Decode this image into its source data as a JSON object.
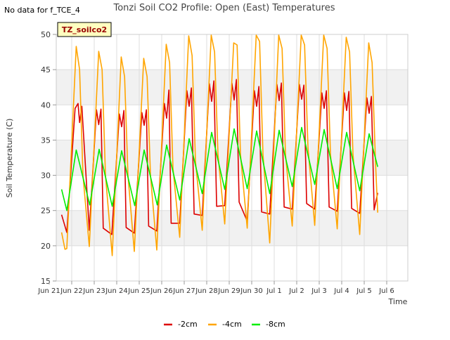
{
  "note": "No data for f_TCE_4",
  "chart_data": {
    "type": "line",
    "title": "Tonzi Soil CO2 Profile: Open (East) Temperatures",
    "xlabel": "Time",
    "ylabel": "Soil Temperature (C)",
    "badge": "TZ_soilco2",
    "ylim": [
      15,
      50
    ],
    "yticks": [
      15,
      20,
      25,
      30,
      35,
      40,
      45,
      50
    ],
    "xlim": [
      0,
      16
    ],
    "xticks": [
      {
        "x": 0,
        "label": "Jun 21"
      },
      {
        "x": 1,
        "label": "Jun 22"
      },
      {
        "x": 2,
        "label": "Jun 23"
      },
      {
        "x": 3,
        "label": "Jun 24"
      },
      {
        "x": 4,
        "label": "Jun 25"
      },
      {
        "x": 5,
        "label": "Jun 26"
      },
      {
        "x": 6,
        "label": "Jun 27"
      },
      {
        "x": 7,
        "label": "Jun 28"
      },
      {
        "x": 8,
        "label": "Jun 29"
      },
      {
        "x": 9,
        "label": "Jun 30"
      },
      {
        "x": 10,
        "label": "Jul 1"
      },
      {
        "x": 11,
        "label": "Jul 2"
      },
      {
        "x": 12,
        "label": "Jul 3"
      },
      {
        "x": 13,
        "label": "Jul 4"
      },
      {
        "x": 14,
        "label": "Jul 5"
      },
      {
        "x": 15,
        "label": "Jul 6"
      }
    ],
    "grid": true,
    "legend_position": "bottom",
    "series": [
      {
        "name": "-2cm",
        "color": "#dd0000",
        "x": [
          0.55,
          0.78,
          1.15,
          1.28,
          1.35,
          1.45,
          1.78,
          2.1,
          2.2,
          2.3,
          2.4,
          2.78,
          3.12,
          3.22,
          3.32,
          3.42,
          3.78,
          4.12,
          4.22,
          4.32,
          4.42,
          4.78,
          5.12,
          5.22,
          5.32,
          5.42,
          5.8,
          6.12,
          6.22,
          6.32,
          6.44,
          6.8,
          7.12,
          7.22,
          7.32,
          7.44,
          7.8,
          8.12,
          8.22,
          8.32,
          8.44,
          8.8,
          9.12,
          9.22,
          9.32,
          9.44,
          9.8,
          10.12,
          10.22,
          10.32,
          10.44,
          10.8,
          11.12,
          11.22,
          11.32,
          11.44,
          11.8,
          12.12,
          12.22,
          12.32,
          12.44,
          12.8,
          13.12,
          13.22,
          13.32,
          13.44,
          13.8,
          14.12,
          14.22,
          14.32,
          14.44,
          14.6
        ],
        "y": [
          24.4,
          21.9,
          39.5,
          40.2,
          37.5,
          39.8,
          22.2,
          39.3,
          37.2,
          39.4,
          22.5,
          21.6,
          38.7,
          36.9,
          39.2,
          22.6,
          21.8,
          38.9,
          37.1,
          39.3,
          22.8,
          22.1,
          40.2,
          38.1,
          42.1,
          23.2,
          23.2,
          42.0,
          39.8,
          42.4,
          24.5,
          24.3,
          43.0,
          40.5,
          43.4,
          25.6,
          25.7,
          43.1,
          40.7,
          43.6,
          26.2,
          23.5,
          42.0,
          39.8,
          42.6,
          24.8,
          24.5,
          42.9,
          40.6,
          43.1,
          25.5,
          25.2,
          42.9,
          40.8,
          42.8,
          26.0,
          25.2,
          41.7,
          39.5,
          42.0,
          25.5,
          24.9,
          41.7,
          39.2,
          41.9,
          25.3,
          24.6,
          41.0,
          38.8,
          41.2,
          25.1,
          27.5
        ]
      },
      {
        "name": "-4cm",
        "color": "#ffa500",
        "x": [
          0.55,
          0.7,
          0.78,
          1.2,
          1.35,
          1.5,
          1.78,
          2.2,
          2.35,
          2.5,
          2.8,
          3.2,
          3.35,
          3.5,
          3.78,
          4.2,
          4.35,
          4.5,
          4.78,
          5.2,
          5.35,
          5.5,
          5.8,
          6.2,
          6.35,
          6.5,
          6.8,
          7.2,
          7.35,
          7.5,
          7.8,
          8.2,
          8.35,
          8.5,
          8.8,
          9.2,
          9.35,
          9.5,
          9.8,
          10.2,
          10.35,
          10.5,
          10.8,
          11.2,
          11.35,
          11.5,
          11.8,
          12.2,
          12.35,
          12.5,
          12.8,
          13.2,
          13.35,
          13.5,
          13.8,
          14.2,
          14.35,
          14.5,
          14.6
        ],
        "y": [
          21.9,
          19.5,
          19.6,
          48.3,
          45.0,
          30.0,
          19.9,
          47.6,
          45.0,
          30.0,
          18.6,
          46.8,
          44.0,
          30.0,
          19.2,
          46.6,
          44.0,
          30.0,
          19.4,
          48.6,
          46.0,
          31.0,
          21.2,
          49.8,
          47.0,
          32.0,
          22.2,
          49.9,
          47.5,
          33.0,
          23.1,
          48.8,
          48.5,
          33.0,
          22.5,
          49.9,
          49.0,
          33.0,
          20.4,
          49.9,
          48.0,
          33.0,
          22.8,
          49.9,
          48.5,
          34.0,
          22.9,
          49.9,
          48.0,
          33.0,
          22.4,
          49.6,
          47.5,
          33.0,
          21.6,
          48.8,
          46.0,
          32.0,
          24.7
        ]
      },
      {
        "name": "-8cm",
        "color": "#00ee00",
        "x": [
          0.55,
          0.78,
          1.2,
          1.8,
          2.22,
          2.8,
          3.22,
          3.8,
          4.22,
          4.8,
          5.22,
          5.8,
          6.22,
          6.8,
          7.22,
          7.8,
          8.22,
          8.8,
          9.22,
          9.8,
          10.22,
          10.8,
          11.22,
          11.8,
          12.22,
          12.8,
          13.22,
          13.8,
          14.22,
          14.6
        ],
        "y": [
          28.0,
          25.0,
          33.6,
          25.8,
          33.7,
          25.6,
          33.5,
          25.7,
          33.6,
          25.8,
          34.3,
          26.5,
          35.2,
          27.4,
          36.1,
          28.0,
          36.6,
          28.1,
          36.3,
          27.4,
          36.4,
          28.4,
          36.8,
          28.7,
          36.5,
          28.1,
          36.1,
          27.8,
          35.9,
          31.2
        ]
      }
    ]
  }
}
